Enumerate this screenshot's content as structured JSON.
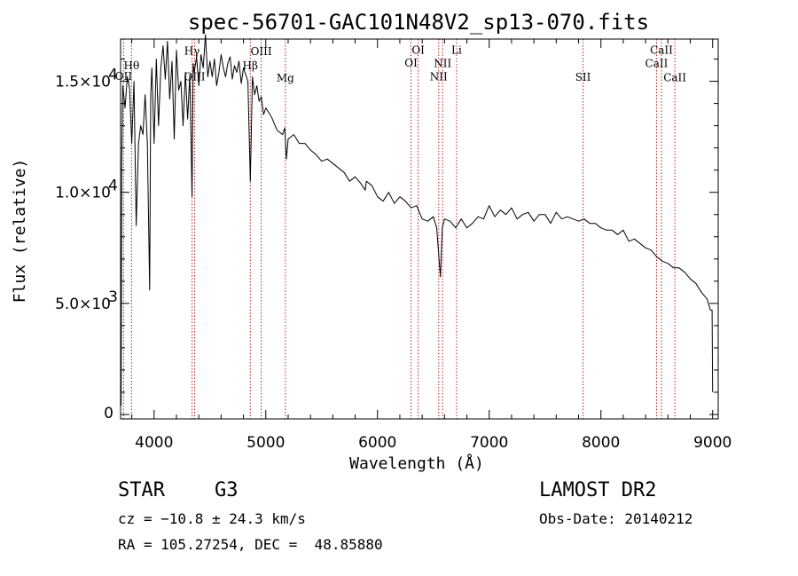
{
  "chart_data": {
    "type": "line",
    "title": "spec-56701-GAC101N48V2_sp13-070.fits",
    "xlabel": "Wavelength (Å)",
    "ylabel": "Flux (relative)",
    "xlim": [
      3700,
      9050
    ],
    "ylim": [
      -200,
      16900
    ],
    "x_ticks": [
      {
        "value": 4000,
        "label": "4000"
      },
      {
        "value": 5000,
        "label": "5000"
      },
      {
        "value": 6000,
        "label": "6000"
      },
      {
        "value": 7000,
        "label": "7000"
      },
      {
        "value": 8000,
        "label": "8000"
      },
      {
        "value": 9000,
        "label": "9000"
      }
    ],
    "y_ticks": [
      {
        "value": 0,
        "mantissa": "0",
        "exponent": ""
      },
      {
        "value": 5000,
        "mantissa": "5.0×10",
        "exponent": "3"
      },
      {
        "value": 10000,
        "mantissa": "1.0×10",
        "exponent": "4"
      },
      {
        "value": 15000,
        "mantissa": "1.5×10",
        "exponent": "4"
      }
    ],
    "grid": false,
    "series": [
      {
        "color": "#000000",
        "x": [
          3705,
          3710,
          3720,
          3740,
          3760,
          3780,
          3800,
          3820,
          3840,
          3860,
          3880,
          3900,
          3920,
          3940,
          3960,
          3970,
          3980,
          4000,
          4020,
          4040,
          4060,
          4080,
          4100,
          4120,
          4140,
          4160,
          4180,
          4200,
          4220,
          4240,
          4260,
          4280,
          4300,
          4320,
          4340,
          4350,
          4360,
          4380,
          4400,
          4420,
          4440,
          4460,
          4480,
          4500,
          4520,
          4540,
          4560,
          4580,
          4600,
          4620,
          4640,
          4660,
          4680,
          4700,
          4720,
          4740,
          4760,
          4780,
          4800,
          4820,
          4840,
          4861,
          4880,
          4900,
          4920,
          4940,
          4960,
          4980,
          5000,
          5050,
          5100,
          5150,
          5170,
          5184,
          5200,
          5250,
          5300,
          5350,
          5400,
          5450,
          5500,
          5550,
          5600,
          5650,
          5700,
          5750,
          5800,
          5850,
          5890,
          5900,
          5950,
          6000,
          6050,
          6100,
          6150,
          6200,
          6250,
          6300,
          6350,
          6400,
          6450,
          6500,
          6530,
          6563,
          6580,
          6600,
          6650,
          6700,
          6750,
          6800,
          6850,
          6900,
          6950,
          7000,
          7050,
          7100,
          7150,
          7200,
          7250,
          7300,
          7350,
          7400,
          7450,
          7500,
          7550,
          7600,
          7650,
          7700,
          7750,
          7800,
          7850,
          7900,
          7950,
          8000,
          8050,
          8100,
          8150,
          8200,
          8250,
          8300,
          8350,
          8400,
          8450,
          8500,
          8550,
          8600,
          8650,
          8700,
          8750,
          8800,
          8850,
          8900,
          8950,
          8980,
          8995,
          9000
        ],
        "y": [
          400,
          11500,
          14800,
          13800,
          15200,
          14700,
          12200,
          15000,
          8500,
          12200,
          13000,
          12600,
          14400,
          12200,
          5600,
          14400,
          15600,
          12200,
          16000,
          13000,
          15600,
          16600,
          15100,
          16800,
          14200,
          15900,
          12400,
          16400,
          14600,
          15000,
          13000,
          15400,
          13300,
          15300,
          9800,
          15800,
          15400,
          16100,
          14800,
          16200,
          15600,
          17100,
          15200,
          15900,
          15200,
          16000,
          14800,
          15400,
          16200,
          15600,
          15200,
          15800,
          16100,
          15100,
          15700,
          15400,
          15900,
          14900,
          15600,
          15300,
          15000,
          10500,
          15200,
          14400,
          14800,
          14100,
          14300,
          13500,
          13800,
          13400,
          12800,
          12600,
          12900,
          11500,
          12400,
          12600,
          12200,
          12200,
          11900,
          11700,
          11400,
          11500,
          11300,
          11100,
          10900,
          10500,
          10700,
          10400,
          10100,
          10500,
          10300,
          9800,
          9600,
          10000,
          9500,
          9800,
          9600,
          9300,
          9400,
          8800,
          8700,
          8900,
          8400,
          6200,
          8400,
          8800,
          8700,
          8400,
          8800,
          8400,
          8600,
          8900,
          8800,
          9400,
          8900,
          9200,
          9000,
          9300,
          8800,
          9000,
          9100,
          8700,
          9000,
          9000,
          8600,
          9100,
          8800,
          8900,
          8800,
          8700,
          8800,
          8600,
          8600,
          8400,
          8300,
          8300,
          8100,
          8300,
          7800,
          7900,
          7700,
          7500,
          7400,
          7100,
          6900,
          6800,
          6600,
          6600,
          6400,
          6100,
          5900,
          5500,
          5200,
          4700,
          4700,
          1000
        ]
      }
    ],
    "spectral_lines": [
      {
        "x": 3727,
        "label": "OII",
        "label_y": 15070
      },
      {
        "x": 3798,
        "label": "Hθ",
        "label_y": 15550
      },
      {
        "x": 4340,
        "label": "Hγ",
        "label_y": 16210
      },
      {
        "x": 4363,
        "label": "OIII",
        "label_y": 15050
      },
      {
        "x": 4861,
        "label": "Hβ",
        "label_y": 15540
      },
      {
        "x": 4959,
        "label": "OIII",
        "label_y": 16190
      },
      {
        "x": 5175,
        "label": "Mg",
        "label_y": 14990
      },
      {
        "x": 6300,
        "label": "OI",
        "label_y": 15660
      },
      {
        "x": 6364,
        "label": "OI",
        "label_y": 16240
      },
      {
        "x": 6548,
        "label": "NII",
        "label_y": 15040
      },
      {
        "x": 6583,
        "label": "NII",
        "label_y": 15650
      },
      {
        "x": 6708,
        "label": "Li",
        "label_y": 16240
      },
      {
        "x": 7840,
        "label": "SII",
        "label_y": 15020
      },
      {
        "x": 8498,
        "label": "CaII",
        "label_y": 15640
      },
      {
        "x": 8542,
        "label": "CaII",
        "label_y": 16250
      },
      {
        "x": 8662,
        "label": "CaII",
        "label_y": 15000
      }
    ]
  },
  "info": {
    "object_class": "STAR",
    "subclass": "G3",
    "survey": "LAMOST DR2",
    "redshift": "cz = −10.8 ± 24.3 km/s",
    "obs_date": "Obs-Date: 20140212",
    "coords": "RA = 105.27254, DEC =  48.85880"
  }
}
